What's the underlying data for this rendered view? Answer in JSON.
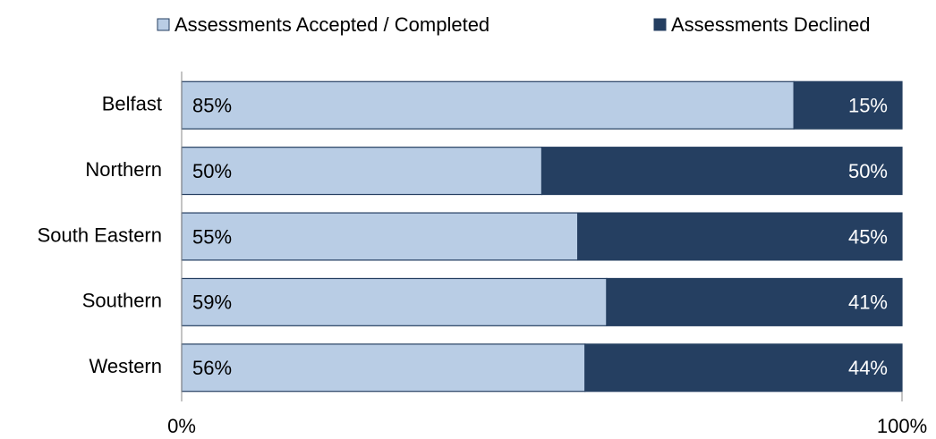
{
  "chart_data": {
    "type": "stacked_bar_horizontal",
    "categories": [
      "Belfast",
      "Northern",
      "South Eastern",
      "Southern",
      "Western"
    ],
    "series": [
      {
        "name": "Assessments Accepted / Completed",
        "color": "#b9cde5",
        "label_color": "#000000",
        "values": [
          85,
          50,
          55,
          59,
          56
        ],
        "value_labels": [
          "85%",
          "50%",
          "55%",
          "59%",
          "56%"
        ]
      },
      {
        "name": "Assessments Declined",
        "color": "#253f61",
        "label_color": "#ffffff",
        "values": [
          15,
          50,
          45,
          41,
          44
        ],
        "value_labels": [
          "15%",
          "50%",
          "45%",
          "41%",
          "44%"
        ]
      }
    ],
    "xlim": [
      0,
      100
    ],
    "xticks": [
      {
        "value": 0,
        "label": "0%"
      },
      {
        "value": 100,
        "label": "100%"
      }
    ],
    "legend": "top"
  }
}
